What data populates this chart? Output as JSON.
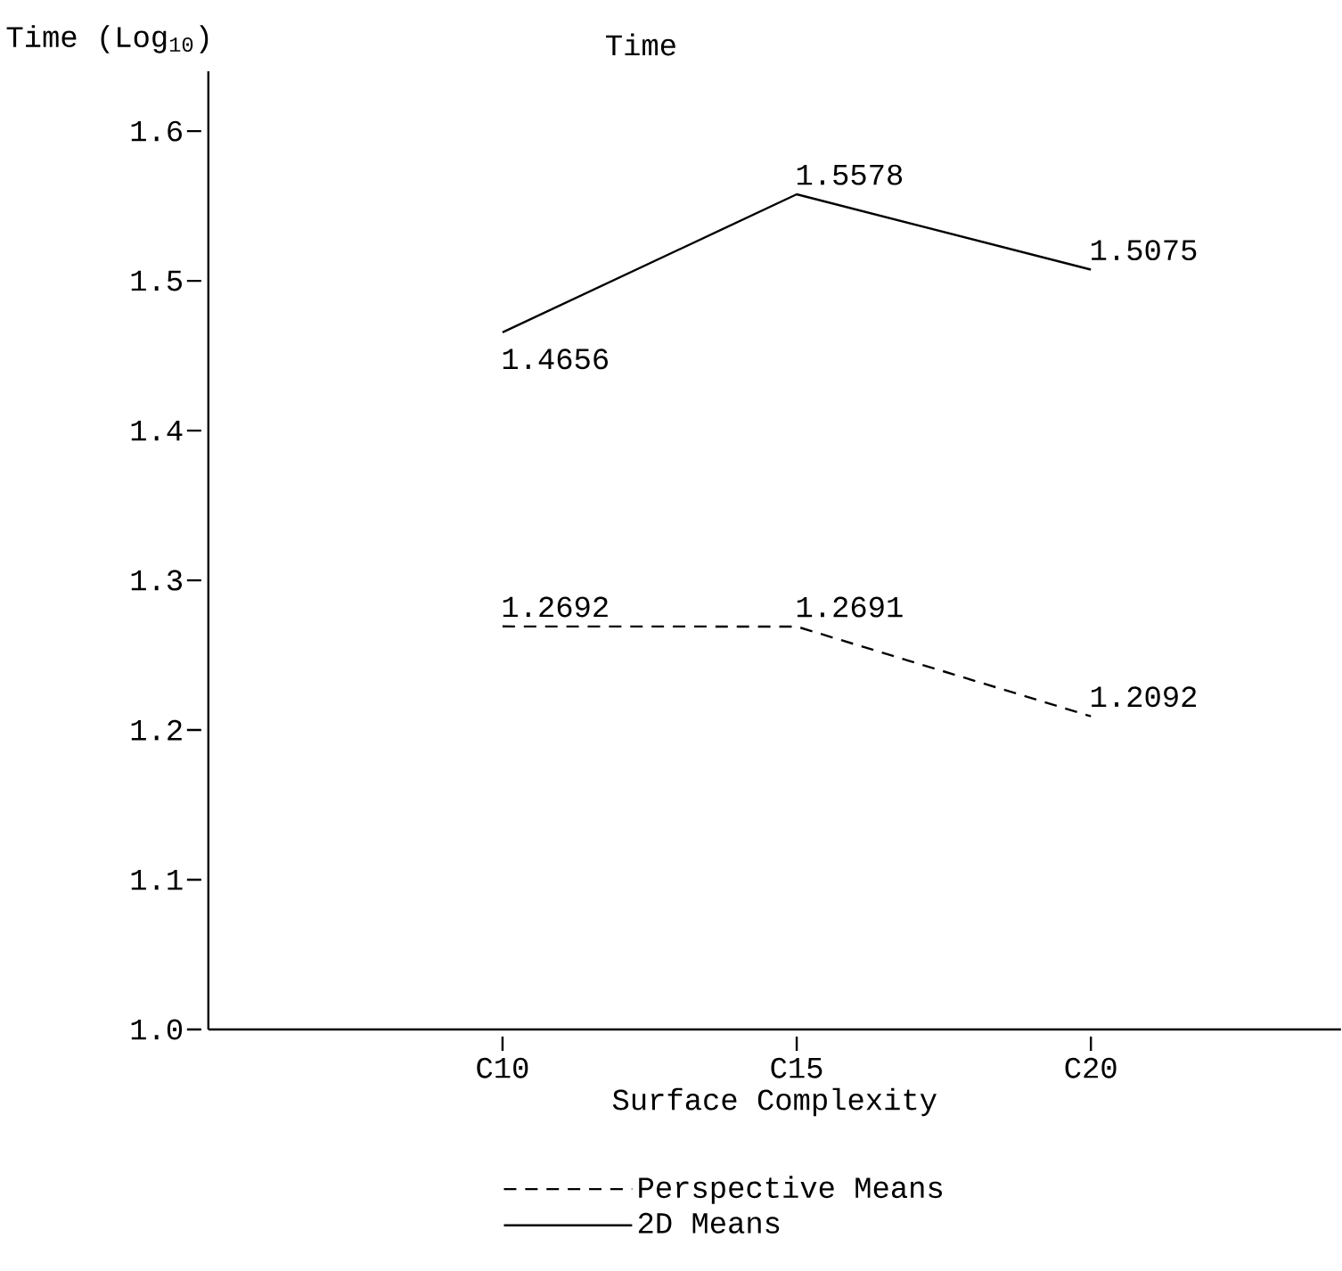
{
  "chart_data": {
    "type": "line",
    "title": "Time",
    "ylabel": "Time (Log$_{10}$)",
    "xlabel": "Surface Complexity",
    "categories": [
      "C10",
      "C15",
      "C20"
    ],
    "series": [
      {
        "name": "Perspective Means",
        "color": "#000000",
        "line_style": "dashed",
        "values": [
          1.2692,
          1.2691,
          1.2092
        ]
      },
      {
        "name": "2D Means",
        "color": "#000000",
        "line_style": "solid",
        "values": [
          1.4656,
          1.5578,
          1.5075
        ]
      }
    ],
    "ylim": [
      1.0,
      1.64
    ],
    "yticks": [
      {
        "value": 1.0,
        "label": "1.0"
      },
      1.1,
      1.2,
      1.3,
      1.4,
      1.5,
      1.6
    ],
    "data_labels": true,
    "grid": false,
    "legend": "bottom",
    "marker": "none"
  }
}
